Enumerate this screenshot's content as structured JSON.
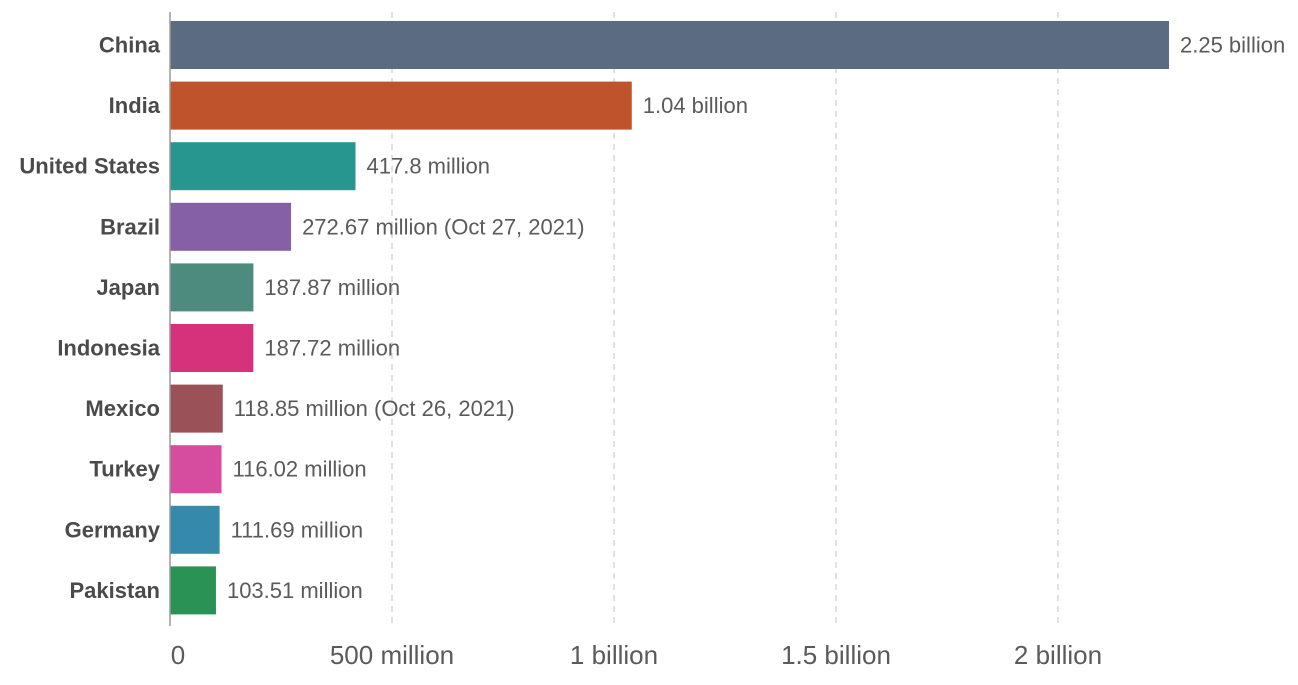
{
  "chart_data": {
    "type": "bar",
    "orientation": "horizontal",
    "title": "",
    "xlabel": "",
    "ylabel": "",
    "xlim": [
      0,
      2250000000
    ],
    "grid": true,
    "categories": [
      "China",
      "India",
      "United States",
      "Brazil",
      "Japan",
      "Indonesia",
      "Mexico",
      "Turkey",
      "Germany",
      "Pakistan"
    ],
    "values": [
      2250000000,
      1040000000,
      417800000,
      272670000,
      187870000,
      187720000,
      118850000,
      116020000,
      111690000,
      103510000
    ],
    "value_labels": [
      "2.25 billion",
      "1.04 billion",
      "417.8 million",
      "272.67 million (Oct 27, 2021)",
      "187.87 million",
      "187.72 million",
      "118.85 million (Oct 26, 2021)",
      "116.02 million",
      "111.69 million",
      "103.51 million"
    ],
    "colors": [
      "#5b6b82",
      "#bf542c",
      "#26968e",
      "#8660a6",
      "#4d8b7e",
      "#d6327c",
      "#9b5158",
      "#d64c9e",
      "#3589ab",
      "#2a9255"
    ],
    "x_ticks": [
      {
        "value": 0,
        "label": "0"
      },
      {
        "value": 500000000,
        "label": "500 million"
      },
      {
        "value": 1000000000,
        "label": "1 billion"
      },
      {
        "value": 1500000000,
        "label": "1.5 billion"
      },
      {
        "value": 2000000000,
        "label": "2 billion"
      }
    ]
  }
}
